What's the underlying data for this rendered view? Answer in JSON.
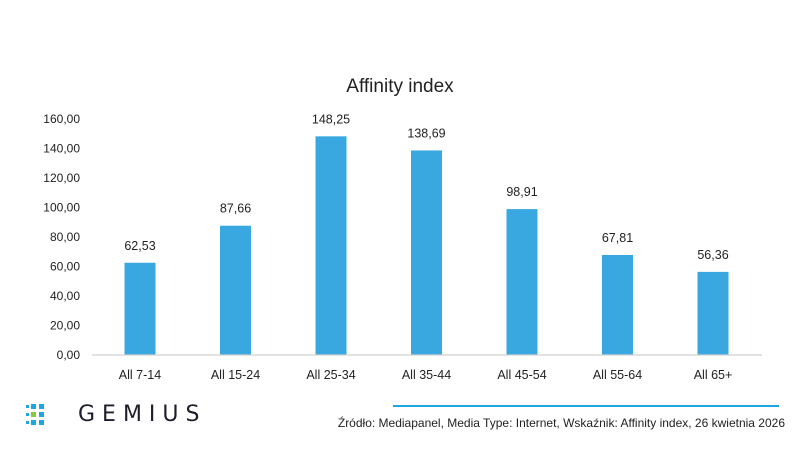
{
  "chart_data": {
    "type": "bar",
    "title": "Affinity index",
    "categories": [
      "All 7-14",
      "All 15-24",
      "All 25-34",
      "All 35-44",
      "All 45-54",
      "All 55-64",
      "All 65+"
    ],
    "values": [
      62.53,
      87.66,
      148.25,
      138.69,
      98.91,
      67.81,
      56.36
    ],
    "value_labels": [
      "62,53",
      "87,66",
      "148,25",
      "138,69",
      "98,91",
      "67,81",
      "56,36"
    ],
    "yticks": [
      "0,00",
      "20,00",
      "40,00",
      "60,00",
      "80,00",
      "100,00",
      "120,00",
      "140,00",
      "160,00"
    ],
    "ylim": [
      0,
      160
    ],
    "grid": false,
    "bar_color": "#3aa8e0"
  },
  "footer": {
    "logo": "GEMIUS",
    "source": "Źródło: Mediapanel, Media Type: Internet, Wskaźnik: Affinity index, 26 kwietnia 2026",
    "accent": "#1ba6e4",
    "logo_green": "#8dc63f"
  }
}
